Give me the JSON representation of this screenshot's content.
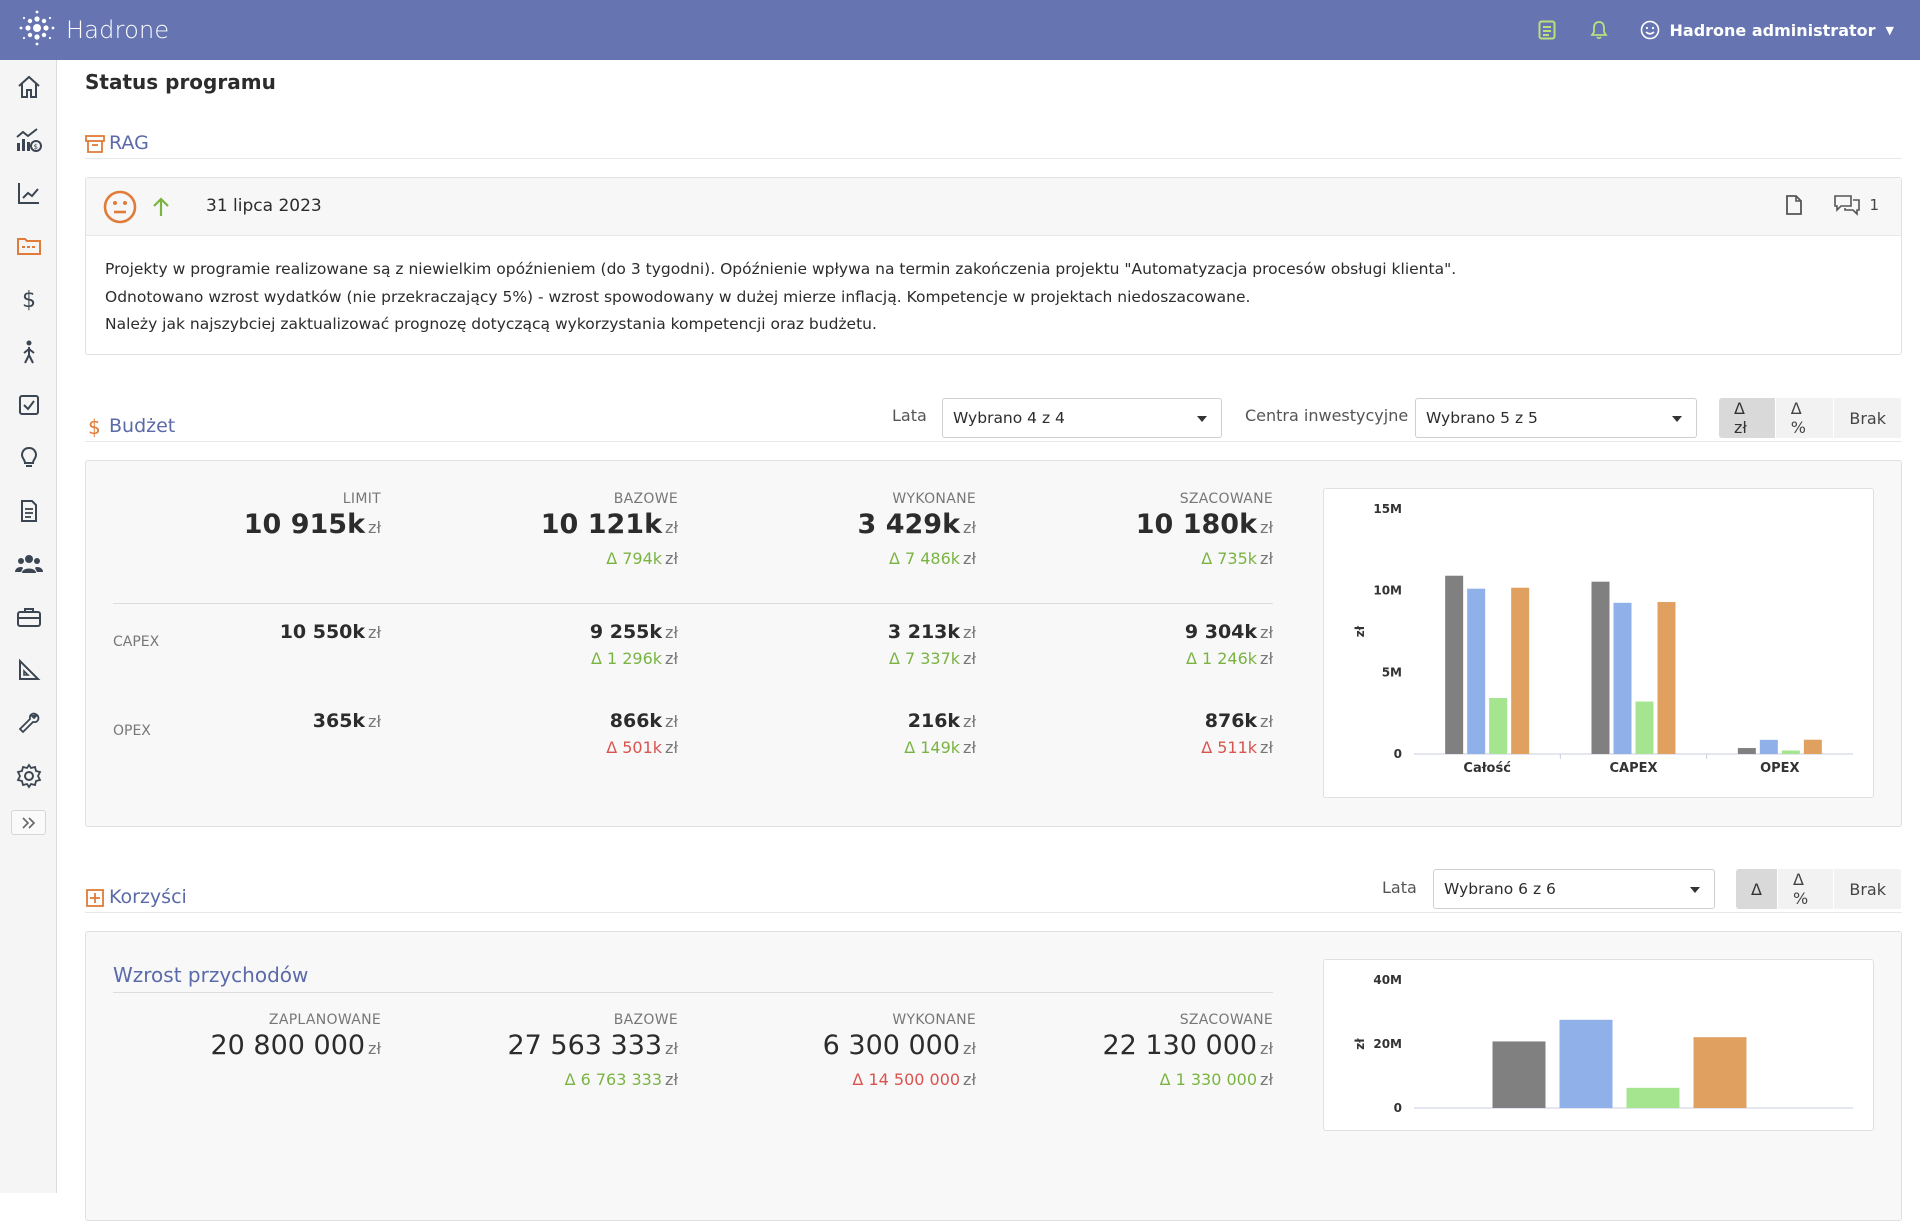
{
  "app": {
    "name": "Hadrone"
  },
  "user": {
    "name": "Hadrone administrator"
  },
  "page": {
    "title": "Status programu"
  },
  "rag": {
    "section_title": "RAG",
    "date": "31 lipca 2023",
    "status": "neutral",
    "trend": "up",
    "comments_count": "1",
    "lines": [
      "Projekty w programie realizowane są z niewielkim opóźnieniem (do 3 tygodni). Opóźnienie wpływa na termin zakończenia projektu \"Automatyzacja procesów obsługi klienta\".",
      "Odnotowano wzrost wydatków (nie przekraczający 5%) - wzrost spowodowany w dużej mierze inflacją. Kompetencje w projektach niedoszacowane.",
      "Należy jak najszybciej zaktualizować prognozę dotyczącą wykorzystania kompetencji oraz budżetu."
    ]
  },
  "budget": {
    "section_title": "Budżet",
    "years_label": "Lata",
    "years_value": "Wybrano 4 z 4",
    "centers_label": "Centra inwestycyjne",
    "centers_value": "Wybrano 5 z 5",
    "toggle": [
      "Δ zł",
      "Δ %",
      "Brak"
    ],
    "toggle_active": 0,
    "unit": "zł",
    "columns": [
      "LIMIT",
      "BAZOWE",
      "WYKONANE",
      "SZACOWANE"
    ],
    "total": {
      "values": [
        "10 915k",
        "10 121k",
        "3 429k",
        "10 180k"
      ],
      "deltas": [
        null,
        "Δ 794k",
        "Δ 7 486k",
        "Δ 735k"
      ],
      "delta_colors": [
        null,
        "g",
        "g",
        "g"
      ]
    },
    "rows": [
      {
        "label": "CAPEX",
        "values": [
          "10 550k",
          "9 255k",
          "3 213k",
          "9 304k"
        ],
        "deltas": [
          null,
          "Δ 1 296k",
          "Δ 7 337k",
          "Δ 1 246k"
        ],
        "delta_colors": [
          null,
          "g",
          "g",
          "g"
        ]
      },
      {
        "label": "OPEX",
        "values": [
          "365k",
          "866k",
          "216k",
          "876k"
        ],
        "deltas": [
          null,
          "Δ 501k",
          "Δ 149k",
          "Δ 511k"
        ],
        "delta_colors": [
          null,
          "r",
          "g",
          "r"
        ]
      }
    ]
  },
  "benefits": {
    "section_title": "Korzyści",
    "years_label": "Lata",
    "years_value": "Wybrano 6 z 6",
    "toggle": [
      "Δ",
      "Δ %",
      "Brak"
    ],
    "toggle_active": 0,
    "subtitle": "Wzrost przychodów",
    "unit": "zł",
    "columns": [
      "ZAPLANOWANE",
      "BAZOWE",
      "WYKONANE",
      "SZACOWANE"
    ],
    "values": [
      "20 800 000",
      "27 563 333",
      "6 300 000",
      "22 130 000"
    ],
    "deltas": [
      null,
      "Δ 6 763 333",
      "Δ 14 500 000",
      "Δ 1 330 000"
    ],
    "delta_colors": [
      null,
      "g",
      "r",
      "g"
    ]
  },
  "chart_data": [
    {
      "type": "bar",
      "categories": [
        "Całość",
        "CAPEX",
        "OPEX"
      ],
      "ylabel": "zł",
      "ylim": [
        0,
        15000000
      ],
      "yticks": [
        "0",
        "5M",
        "10M",
        "15M"
      ],
      "colors": [
        "#808080",
        "#8fb0e8",
        "#a6e58f",
        "#e0a060"
      ],
      "series": [
        {
          "values": [
            10915000,
            10550000,
            365000
          ]
        },
        {
          "values": [
            10121000,
            9255000,
            866000
          ]
        },
        {
          "values": [
            3429000,
            3213000,
            216000
          ]
        },
        {
          "values": [
            10180000,
            9304000,
            876000
          ]
        }
      ]
    },
    {
      "type": "bar",
      "categories": [
        ""
      ],
      "ylabel": "zł",
      "ylim": [
        0,
        40000000
      ],
      "yticks": [
        "0",
        "20M",
        "40M"
      ],
      "colors": [
        "#808080",
        "#8fb0e8",
        "#a6e58f",
        "#e0a060"
      ],
      "series": [
        {
          "values": [
            20800000
          ]
        },
        {
          "values": [
            27563333
          ]
        },
        {
          "values": [
            6300000
          ]
        },
        {
          "values": [
            22130000
          ]
        }
      ]
    }
  ]
}
